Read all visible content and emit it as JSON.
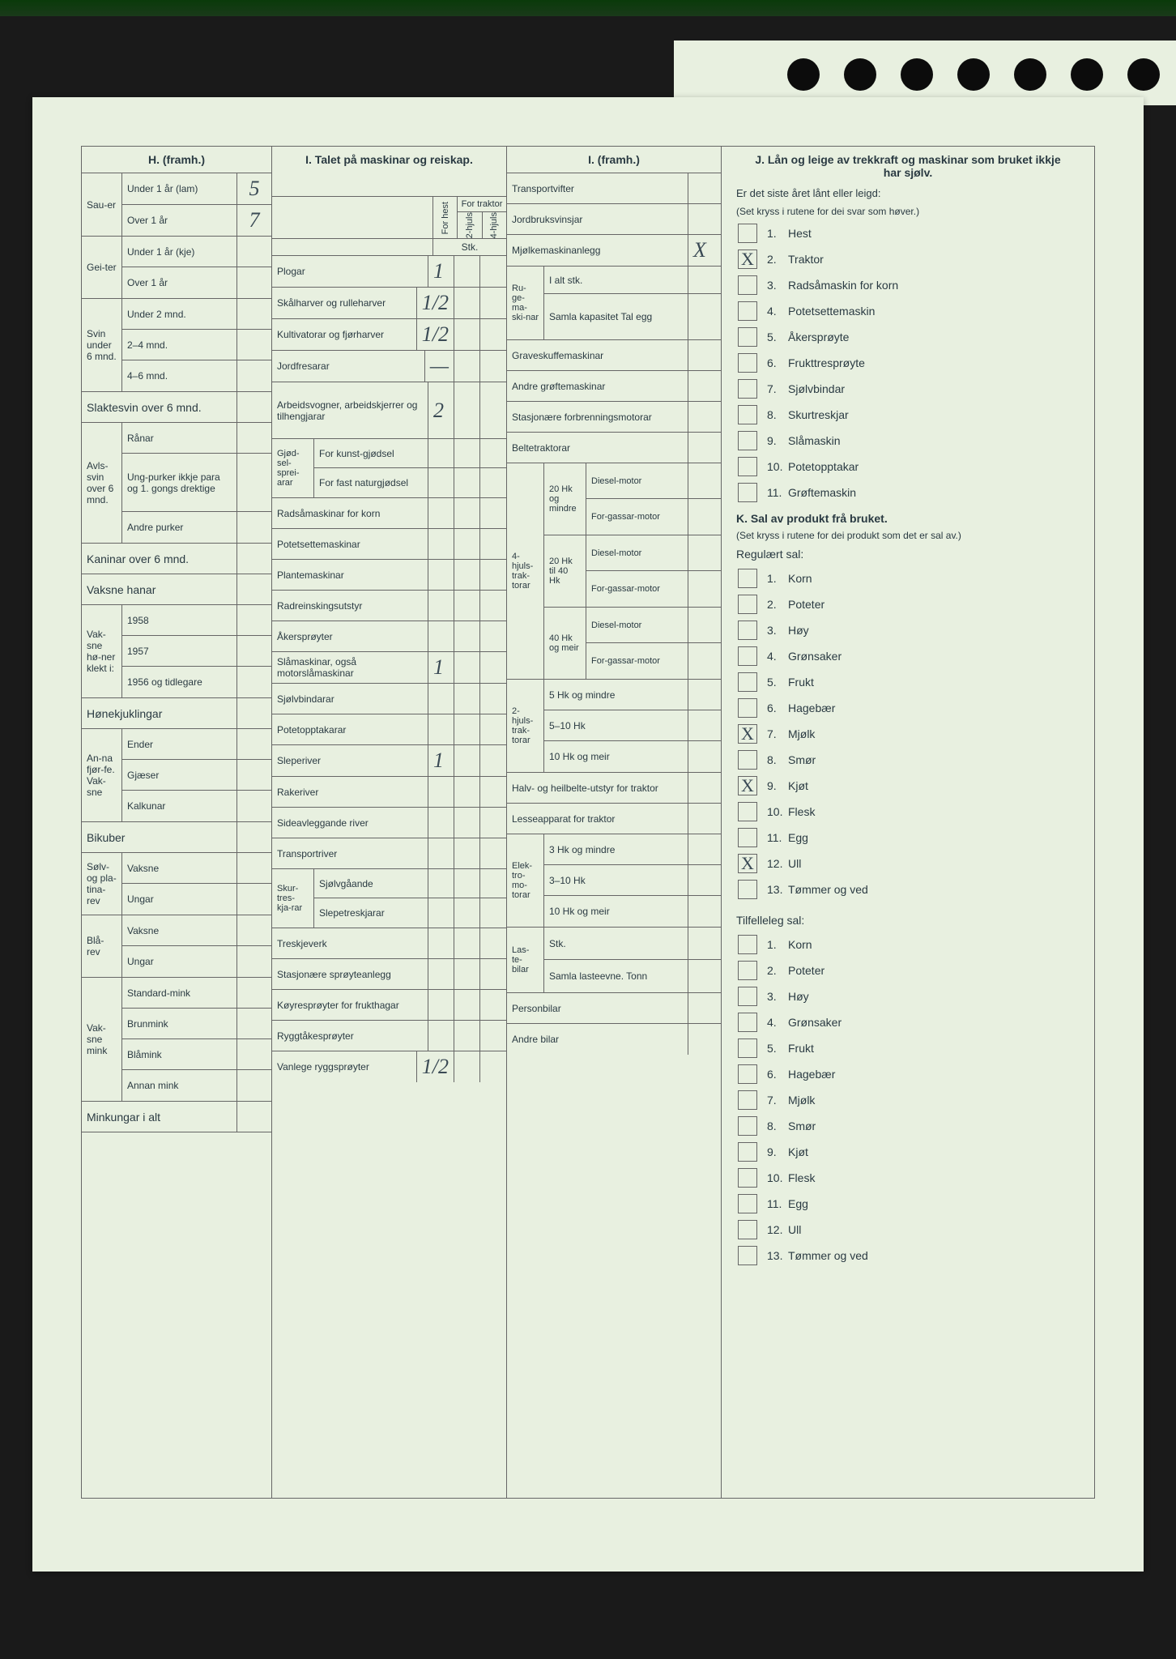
{
  "colors": {
    "paper": "#e8f0e0",
    "line": "#666",
    "ink": "#2a3a42",
    "hand": "#3a4a55",
    "bg": "#1a1a1a"
  },
  "H": {
    "title": "H. (framh.)",
    "rows": [
      {
        "group": "Sau-er",
        "span": 2,
        "sub": "Under 1 år (lam)",
        "val": "5"
      },
      {
        "sub": "Over 1 år",
        "val": "7"
      },
      {
        "group": "Gei-ter",
        "span": 2,
        "sub": "Under 1 år (kje)",
        "val": ""
      },
      {
        "sub": "Over 1 år",
        "val": ""
      },
      {
        "group": "Svin under 6 mnd.",
        "span": 3,
        "sub": "Under 2 mnd.",
        "val": ""
      },
      {
        "sub": "2–4 mnd.",
        "val": ""
      },
      {
        "sub": "4–6 mnd.",
        "val": ""
      },
      {
        "full": "Slaktesvin over 6 mnd.",
        "val": ""
      },
      {
        "group": "Avls-svin over 6 mnd.",
        "span": 3,
        "sub": "Rånar",
        "val": ""
      },
      {
        "sub": "Ung-purker ikkje para og 1. gongs drektige",
        "val": "",
        "tall": true
      },
      {
        "sub": "Andre purker",
        "val": ""
      },
      {
        "full": "Kaninar over 6 mnd.",
        "val": ""
      },
      {
        "full": "Vaksne hanar",
        "val": ""
      },
      {
        "group": "Vak-sne hø-ner klekt i:",
        "span": 3,
        "sub": "1958",
        "val": ""
      },
      {
        "sub": "1957",
        "val": ""
      },
      {
        "sub": "1956 og tidlegare",
        "val": ""
      },
      {
        "full": "Hønekjuklingar",
        "val": ""
      },
      {
        "group": "An-na fjør-fe. Vak-sne",
        "span": 3,
        "sub": "Ender",
        "val": ""
      },
      {
        "sub": "Gjæser",
        "val": ""
      },
      {
        "sub": "Kalkunar",
        "val": ""
      },
      {
        "full": "Bikuber",
        "val": ""
      },
      {
        "group": "Sølv- og pla-tina-rev",
        "span": 2,
        "sub": "Vaksne",
        "val": ""
      },
      {
        "sub": "Ungar",
        "val": ""
      },
      {
        "group": "Blå-rev",
        "span": 2,
        "sub": "Vaksne",
        "val": ""
      },
      {
        "sub": "Ungar",
        "val": ""
      },
      {
        "group": "Vak-sne mink",
        "span": 4,
        "sub": "Standard-mink",
        "val": ""
      },
      {
        "sub": "Brunmink",
        "val": ""
      },
      {
        "sub": "Blåmink",
        "val": ""
      },
      {
        "sub": "Annan mink",
        "val": ""
      },
      {
        "full": "Minkungar i alt",
        "val": ""
      }
    ]
  },
  "I1": {
    "title": "I. Talet på maskinar og reiskap.",
    "subhead": {
      "left": "",
      "a": "For hest",
      "b": "2-hjuls",
      "c": "4-hjuls",
      "top": "For traktor"
    },
    "stk": "Stk.",
    "rows": [
      {
        "label": "Plogar",
        "v1": "1",
        "v2": "",
        "v3": ""
      },
      {
        "label": "Skålharver og rulleharver",
        "v1": "1/2",
        "v2": "",
        "v3": ""
      },
      {
        "label": "Kultivatorar og fjørharver",
        "v1": "1/2",
        "v2": "",
        "v3": ""
      },
      {
        "label": "Jordfresarar",
        "v1": "—",
        "v2": "",
        "v3": ""
      },
      {
        "label": "Arbeidsvogner, arbeidskjerrer og tilhengjarar",
        "v1": "2",
        "v2": "",
        "v3": "",
        "tall": true
      },
      {
        "label": "Gjød-sel-sprei-arar",
        "sub1": "For kunst-gjødsel",
        "sub2": "For fast naturgjødsel",
        "double": true
      },
      {
        "label": "Radsåmaskinar for korn",
        "v1": "",
        "v2": "",
        "v3": ""
      },
      {
        "label": "Potetsettemaskinar",
        "v1": "",
        "v2": "",
        "v3": ""
      },
      {
        "label": "Plantemaskinar",
        "v1": "",
        "v2": "",
        "v3": ""
      },
      {
        "label": "Radreinskingsutstyr",
        "v1": "",
        "v2": "",
        "v3": ""
      },
      {
        "label": "Åkersprøyter",
        "v1": "",
        "v2": "",
        "v3": ""
      },
      {
        "label": "Slåmaskinar, også motorslåmaskinar",
        "v1": "1",
        "v2": "",
        "v3": ""
      },
      {
        "label": "Sjølvbindarar",
        "v1": "",
        "v2": "",
        "v3": ""
      },
      {
        "label": "Potetopptakarar",
        "v1": "",
        "v2": "",
        "v3": ""
      },
      {
        "label": "Sleperiver",
        "v1": "1",
        "v2": "",
        "v3": ""
      },
      {
        "label": "Rakeriver",
        "v1": "",
        "v2": "",
        "v3": ""
      },
      {
        "label": "Sideavleggande river",
        "v1": "",
        "v2": "",
        "v3": ""
      },
      {
        "label": "Transportriver",
        "v1": "",
        "v2": "",
        "v3": ""
      },
      {
        "label": "Skur-tres-kja-rar",
        "sub1": "Sjølvgåande",
        "sub2": "Slepetreskjarar",
        "double": true
      },
      {
        "label": "Treskjeverk",
        "v1": "",
        "v2": "",
        "v3": ""
      },
      {
        "label": "Stasjonære sprøyteanlegg",
        "v1": "",
        "v2": "",
        "v3": ""
      },
      {
        "label": "Køyresprøyter for frukthagar",
        "v1": "",
        "v2": "",
        "v3": ""
      },
      {
        "label": "Ryggtåkesprøyter",
        "v1": "",
        "v2": "",
        "v3": ""
      },
      {
        "label": "Vanlege ryggsprøyter",
        "v1": "1/2",
        "v2": "",
        "v3": ""
      }
    ]
  },
  "I2": {
    "title": "I. (framh.)",
    "rows": [
      {
        "label": "Transportvifter",
        "val": ""
      },
      {
        "label": "Jordbruksvinsjar",
        "val": ""
      },
      {
        "label": "Mjølkemaskinanlegg",
        "val": "X"
      },
      {
        "group": "Ru-ge-ma-ski-nar",
        "span": 2,
        "sub": "I alt stk.",
        "val": ""
      },
      {
        "sub": "Samla kapasitet Tal egg",
        "val": "",
        "tall": true
      },
      {
        "label": "Graveskuffemaskinar",
        "val": ""
      },
      {
        "label": "Andre grøftemaskinar",
        "val": ""
      },
      {
        "label": "Stasjonære forbrenningsmotorar",
        "val": ""
      },
      {
        "label": "Beltetraktorar",
        "val": ""
      }
    ],
    "tractors4": {
      "group": "4-hjuls-trak-torar",
      "cats": [
        {
          "p": "20 Hk og mindre",
          "t": [
            "Diesel-motor",
            "For-gassar-motor"
          ],
          "v": [
            "",
            ""
          ]
        },
        {
          "p": "20 Hk til 40 Hk",
          "t": [
            "Diesel-motor",
            "For-gassar-motor"
          ],
          "v": [
            "",
            ""
          ]
        },
        {
          "p": "40 Hk og meir",
          "t": [
            "Diesel-motor",
            "For-gassar-motor"
          ],
          "v": [
            "",
            ""
          ]
        }
      ]
    },
    "tractors2": {
      "group": "2-hjuls-trak-torar",
      "rows": [
        {
          "l": "5 Hk og mindre",
          "v": ""
        },
        {
          "l": "5–10 Hk",
          "v": ""
        },
        {
          "l": "10 Hk og meir",
          "v": ""
        }
      ]
    },
    "rest": [
      {
        "label": "Halv- og heilbelte-utstyr for traktor",
        "val": ""
      },
      {
        "label": "Lesseapparat for traktor",
        "val": ""
      }
    ],
    "elektro": {
      "group": "Elek-tro-mo-torar",
      "rows": [
        {
          "l": "3 Hk og mindre",
          "v": ""
        },
        {
          "l": "3–10 Hk",
          "v": ""
        },
        {
          "l": "10 Hk og meir",
          "v": ""
        }
      ]
    },
    "laste": {
      "group": "Las-te-bilar",
      "rows": [
        {
          "l": "Stk.",
          "v": ""
        },
        {
          "l": "Samla lasteevne. Tonn",
          "v": ""
        }
      ]
    },
    "last": [
      {
        "label": "Personbilar",
        "val": ""
      },
      {
        "label": "Andre bilar",
        "val": ""
      }
    ]
  },
  "J": {
    "title": "J. Lån og leige av trekkraft og maskinar som bruket ikkje har sjølv.",
    "intro": "Er det siste året lånt eller leigd:",
    "note": "(Set kryss i rutene for dei svar som høver.)",
    "items": [
      {
        "n": "1.",
        "l": "Hest",
        "x": ""
      },
      {
        "n": "2.",
        "l": "Traktor",
        "x": "X"
      },
      {
        "n": "3.",
        "l": "Radsåmaskin for korn",
        "x": ""
      },
      {
        "n": "4.",
        "l": "Potetsettemaskin",
        "x": ""
      },
      {
        "n": "5.",
        "l": "Åkersprøyte",
        "x": ""
      },
      {
        "n": "6.",
        "l": "Frukttresprøyte",
        "x": ""
      },
      {
        "n": "7.",
        "l": "Sjølvbindar",
        "x": ""
      },
      {
        "n": "8.",
        "l": "Skurtreskjar",
        "x": ""
      },
      {
        "n": "9.",
        "l": "Slåmaskin",
        "x": ""
      },
      {
        "n": "10.",
        "l": "Potetopptakar",
        "x": ""
      },
      {
        "n": "11.",
        "l": "Grøftemaskin",
        "x": ""
      }
    ]
  },
  "K": {
    "title": "K. Sal av produkt frå bruket.",
    "note": "(Set kryss i rutene for dei produkt som det er sal av.)",
    "reg_title": "Regulært sal:",
    "reg": [
      {
        "n": "1.",
        "l": "Korn",
        "x": ""
      },
      {
        "n": "2.",
        "l": "Poteter",
        "x": ""
      },
      {
        "n": "3.",
        "l": "Høy",
        "x": ""
      },
      {
        "n": "4.",
        "l": "Grønsaker",
        "x": ""
      },
      {
        "n": "5.",
        "l": "Frukt",
        "x": ""
      },
      {
        "n": "6.",
        "l": "Hagebær",
        "x": ""
      },
      {
        "n": "7.",
        "l": "Mjølk",
        "x": "X"
      },
      {
        "n": "8.",
        "l": "Smør",
        "x": ""
      },
      {
        "n": "9.",
        "l": "Kjøt",
        "x": "X"
      },
      {
        "n": "10.",
        "l": "Flesk",
        "x": ""
      },
      {
        "n": "11.",
        "l": "Egg",
        "x": ""
      },
      {
        "n": "12.",
        "l": "Ull",
        "x": "X"
      },
      {
        "n": "13.",
        "l": "Tømmer og ved",
        "x": ""
      }
    ],
    "tilf_title": "Tilfelleleg sal:",
    "tilf": [
      {
        "n": "1.",
        "l": "Korn",
        "x": ""
      },
      {
        "n": "2.",
        "l": "Poteter",
        "x": ""
      },
      {
        "n": "3.",
        "l": "Høy",
        "x": ""
      },
      {
        "n": "4.",
        "l": "Grønsaker",
        "x": ""
      },
      {
        "n": "5.",
        "l": "Frukt",
        "x": ""
      },
      {
        "n": "6.",
        "l": "Hagebær",
        "x": ""
      },
      {
        "n": "7.",
        "l": "Mjølk",
        "x": ""
      },
      {
        "n": "8.",
        "l": "Smør",
        "x": ""
      },
      {
        "n": "9.",
        "l": "Kjøt",
        "x": ""
      },
      {
        "n": "10.",
        "l": "Flesk",
        "x": ""
      },
      {
        "n": "11.",
        "l": "Egg",
        "x": ""
      },
      {
        "n": "12.",
        "l": "Ull",
        "x": ""
      },
      {
        "n": "13.",
        "l": "Tømmer og ved",
        "x": ""
      }
    ]
  }
}
